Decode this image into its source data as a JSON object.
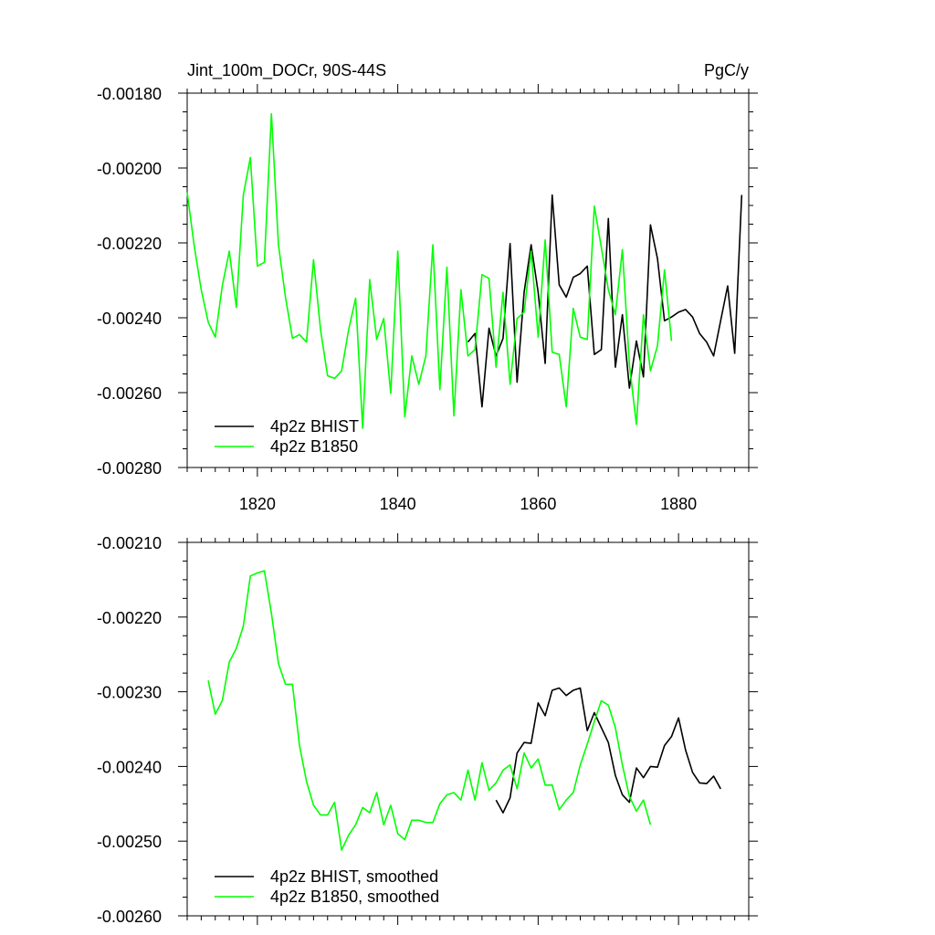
{
  "chart_data": [
    {
      "type": "line",
      "title": "Jint_100m_DOCr, 90S-44S",
      "units": "PgC/y",
      "xlim": [
        1810,
        1890
      ],
      "ylim": [
        -0.0028,
        -0.0018
      ],
      "x_ticks": [
        1820,
        1840,
        1860,
        1880
      ],
      "x_tick_labels": [
        "1820",
        "1840",
        "1860",
        "1880"
      ],
      "y_ticks": [
        -0.0018,
        -0.002,
        -0.0022,
        -0.0024,
        -0.0026,
        -0.0028
      ],
      "y_tick_labels": [
        "-0.00180",
        "-0.00200",
        "-0.00220",
        "-0.00240",
        "-0.00260",
        "-0.00280"
      ],
      "legend_position": "bottom-left",
      "series": [
        {
          "name": "4p2z BHIST",
          "color": "#000000",
          "x": [
            1850,
            1851,
            1852,
            1853,
            1854,
            1855,
            1856,
            1857,
            1858,
            1859,
            1860,
            1861,
            1862,
            1863,
            1864,
            1865,
            1866,
            1867,
            1868,
            1869,
            1870,
            1871,
            1872,
            1873,
            1874,
            1875,
            1876,
            1877,
            1878,
            1879,
            1880,
            1881,
            1882,
            1883,
            1884,
            1885,
            1886,
            1887,
            1888,
            1889
          ],
          "values": [
            -0.002465,
            -0.002442,
            -0.002638,
            -0.002428,
            -0.002502,
            -0.002455,
            -0.002202,
            -0.002572,
            -0.002332,
            -0.002205,
            -0.002332,
            -0.002522,
            -0.002072,
            -0.002312,
            -0.002345,
            -0.002292,
            -0.002282,
            -0.002262,
            -0.002498,
            -0.002485,
            -0.002135,
            -0.002532,
            -0.002392,
            -0.002588,
            -0.002462,
            -0.002558,
            -0.002152,
            -0.002242,
            -0.002408,
            -0.002398,
            -0.002385,
            -0.002378,
            -0.002398,
            -0.002442,
            -0.002465,
            -0.002502,
            -0.002408,
            -0.002315,
            -0.002495,
            -0.002072
          ]
        },
        {
          "name": "4p2z B1850",
          "color": "#00ff00",
          "x": [
            1810,
            1811,
            1812,
            1813,
            1814,
            1815,
            1816,
            1817,
            1818,
            1819,
            1820,
            1821,
            1822,
            1823,
            1824,
            1825,
            1826,
            1827,
            1828,
            1829,
            1830,
            1831,
            1832,
            1833,
            1834,
            1835,
            1836,
            1837,
            1838,
            1839,
            1840,
            1841,
            1842,
            1843,
            1844,
            1845,
            1846,
            1847,
            1848,
            1849,
            1850,
            1851,
            1852,
            1853,
            1854,
            1855,
            1856,
            1857,
            1858,
            1859,
            1860,
            1861,
            1862,
            1863,
            1864,
            1865,
            1866,
            1867,
            1868,
            1869,
            1870,
            1871,
            1872,
            1873,
            1874,
            1875,
            1876,
            1877,
            1878,
            1879
          ],
          "values": [
            -0.002065,
            -0.002208,
            -0.002325,
            -0.002412,
            -0.002452,
            -0.002315,
            -0.002222,
            -0.002372,
            -0.002072,
            -0.001972,
            -0.002262,
            -0.002252,
            -0.001855,
            -0.002205,
            -0.002345,
            -0.002455,
            -0.002445,
            -0.002465,
            -0.002245,
            -0.002432,
            -0.002555,
            -0.002562,
            -0.002542,
            -0.002432,
            -0.002348,
            -0.002695,
            -0.002298,
            -0.002458,
            -0.002402,
            -0.002602,
            -0.002222,
            -0.002665,
            -0.002502,
            -0.002578,
            -0.002502,
            -0.002205,
            -0.002592,
            -0.002265,
            -0.002662,
            -0.002325,
            -0.002502,
            -0.002485,
            -0.002285,
            -0.002295,
            -0.002532,
            -0.002332,
            -0.002578,
            -0.002402,
            -0.002385,
            -0.002222,
            -0.002452,
            -0.002192,
            -0.002492,
            -0.002498,
            -0.002638,
            -0.002375,
            -0.002452,
            -0.002458,
            -0.002102,
            -0.002212,
            -0.002325,
            -0.002392,
            -0.002218,
            -0.002525,
            -0.002685,
            -0.002392,
            -0.002542,
            -0.002475,
            -0.002272,
            -0.002462
          ]
        }
      ]
    },
    {
      "type": "line",
      "title": "",
      "units": "",
      "xlim": [
        1810,
        1890
      ],
      "ylim": [
        -0.0026,
        -0.0021
      ],
      "x_ticks": [
        1820,
        1840,
        1860,
        1880
      ],
      "x_tick_labels": [],
      "y_ticks": [
        -0.0021,
        -0.0022,
        -0.0023,
        -0.0024,
        -0.0025,
        -0.0026
      ],
      "y_tick_labels": [
        "-0.00210",
        "-0.00220",
        "-0.00230",
        "-0.00240",
        "-0.00250",
        "-0.00260"
      ],
      "legend_position": "bottom-left",
      "series": [
        {
          "name": "4p2z BHIST, smoothed",
          "color": "#000000",
          "x": [
            1854,
            1855,
            1856,
            1857,
            1858,
            1859,
            1860,
            1861,
            1862,
            1863,
            1864,
            1865,
            1866,
            1867,
            1868,
            1869,
            1870,
            1871,
            1872,
            1873,
            1874,
            1875,
            1876,
            1877,
            1878,
            1879,
            1880,
            1881,
            1882,
            1883,
            1884,
            1885,
            1886
          ],
          "values": [
            -0.002445,
            -0.002462,
            -0.002442,
            -0.002382,
            -0.002368,
            -0.002369,
            -0.002315,
            -0.002332,
            -0.002298,
            -0.002295,
            -0.002305,
            -0.002298,
            -0.002295,
            -0.002352,
            -0.002328,
            -0.002348,
            -0.002368,
            -0.002412,
            -0.002438,
            -0.002448,
            -0.002402,
            -0.002415,
            -0.0024,
            -0.002401,
            -0.002372,
            -0.00236,
            -0.002335,
            -0.002378,
            -0.002408,
            -0.002422,
            -0.002423,
            -0.002413,
            -0.00243
          ]
        },
        {
          "name": "4p2z B1850, smoothed",
          "color": "#00ff00",
          "x": [
            1813,
            1814,
            1815,
            1816,
            1817,
            1818,
            1819,
            1820,
            1821,
            1822,
            1823,
            1824,
            1825,
            1826,
            1827,
            1828,
            1829,
            1830,
            1831,
            1832,
            1833,
            1834,
            1835,
            1836,
            1837,
            1838,
            1839,
            1840,
            1841,
            1842,
            1843,
            1844,
            1845,
            1846,
            1847,
            1848,
            1849,
            1850,
            1851,
            1852,
            1853,
            1854,
            1855,
            1856,
            1857,
            1858,
            1859,
            1860,
            1861,
            1862,
            1863,
            1864,
            1865,
            1866,
            1867,
            1868,
            1869,
            1870,
            1871,
            1872,
            1873,
            1874,
            1875,
            1876
          ],
          "values": [
            -0.002285,
            -0.00233,
            -0.002312,
            -0.00226,
            -0.002242,
            -0.002212,
            -0.002145,
            -0.002141,
            -0.002138,
            -0.002195,
            -0.002262,
            -0.00229,
            -0.00229,
            -0.002372,
            -0.00242,
            -0.002452,
            -0.002465,
            -0.002465,
            -0.002448,
            -0.002512,
            -0.002492,
            -0.002478,
            -0.002455,
            -0.002462,
            -0.002435,
            -0.002478,
            -0.002452,
            -0.00249,
            -0.002498,
            -0.002472,
            -0.002472,
            -0.002475,
            -0.002475,
            -0.00245,
            -0.002438,
            -0.002435,
            -0.002445,
            -0.002405,
            -0.002445,
            -0.002395,
            -0.002432,
            -0.002422,
            -0.002405,
            -0.002398,
            -0.00243,
            -0.002382,
            -0.002402,
            -0.00239,
            -0.002425,
            -0.002425,
            -0.002458,
            -0.002445,
            -0.002435,
            -0.002398,
            -0.00237,
            -0.00234,
            -0.002312,
            -0.002318,
            -0.002348,
            -0.002398,
            -0.00244,
            -0.00246,
            -0.002445,
            -0.002478
          ]
        }
      ]
    }
  ]
}
